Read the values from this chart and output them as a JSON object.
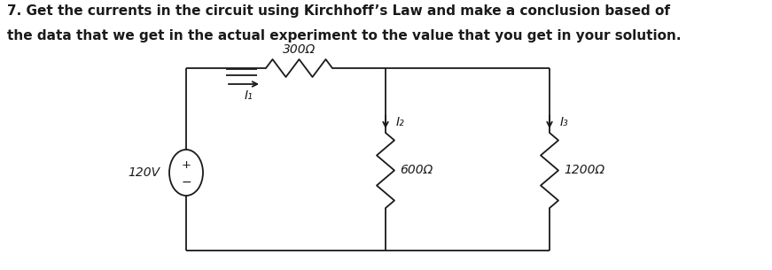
{
  "title_line1": "7. Get the currents in the circuit using Kirchhoff’s Law and make a conclusion based of",
  "title_line2": "the data that we get in the actual experiment to the value that you get in your solution.",
  "bg_color": "#ffffff",
  "line_color": "#1a1a1a",
  "text_color": "#1a1a1a",
  "fig_width": 8.71,
  "fig_height": 3.05,
  "dpi": 100,
  "title_fontsize": 11.0,
  "resistor_300_label": "300Ω",
  "resistor_600_label": "600Ω",
  "resistor_1200_label": "1200Ω",
  "voltage_label": "120V",
  "current_i1_label": "I₁",
  "current_i2_label": "I₂",
  "current_i3_label": "I₃"
}
